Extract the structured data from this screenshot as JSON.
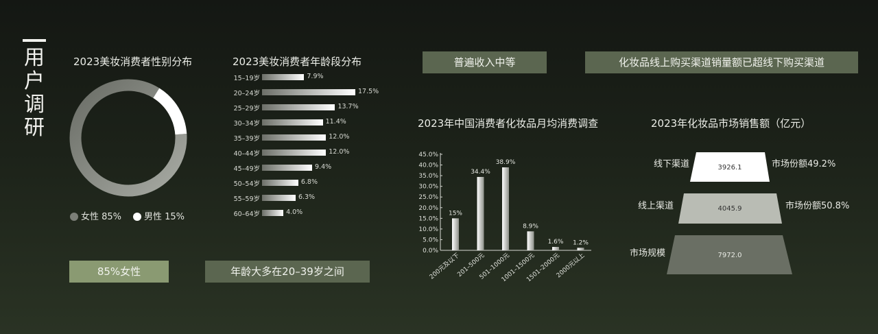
{
  "section_title": [
    "用",
    "户",
    "调",
    "研"
  ],
  "gender": {
    "title": "2023美妆消费者性别分布",
    "chart_data": {
      "type": "pie",
      "categories": [
        "女性",
        "男性"
      ],
      "values": [
        85,
        15
      ]
    },
    "legend": [
      {
        "label": "女性 85%",
        "color": "#7c7f78"
      },
      {
        "label": "男性 15%",
        "color": "#ffffff"
      }
    ],
    "tag": "85%女性"
  },
  "age": {
    "title": "2023美妆消费者年龄段分布",
    "chart_data": {
      "type": "bar",
      "orientation": "horizontal",
      "categories": [
        "15–19岁",
        "20–24岁",
        "25–29岁",
        "30–34岁",
        "35–39岁",
        "40–44岁",
        "45–49岁",
        "50–54岁",
        "55–59岁",
        "60–64岁"
      ],
      "values": [
        7.9,
        17.5,
        13.7,
        11.4,
        12.0,
        12.0,
        9.4,
        6.8,
        6.3,
        4.0
      ],
      "value_labels": [
        "7.9%",
        "17.5%",
        "13.7%",
        "11.4%",
        "12.0%",
        "12.0%",
        "9.4%",
        "6.8%",
        "6.3%",
        "4.0%"
      ]
    },
    "tag": "年龄大多在20–39岁之间"
  },
  "tags_top": {
    "income": "普遍收入中等",
    "channel": "化妆品线上购买渠道销量额已超线下购买渠道"
  },
  "monthly": {
    "title": "2023年中国消费者化妆品月均消费调查",
    "chart_data": {
      "type": "bar",
      "categories": [
        "200元及以下",
        "201–500元",
        "501–1000元",
        "1001–1500元",
        "1501–2000元",
        "2000元以上"
      ],
      "values": [
        15,
        34.4,
        38.9,
        8.9,
        1.6,
        1.2
      ],
      "value_labels": [
        "15%",
        "34.4%",
        "38.9%",
        "8.9%",
        "1.6%",
        "1.2%"
      ],
      "ylim": [
        0,
        45
      ],
      "yticks": [
        "0.0%",
        "5.0%",
        "10.0%",
        "15.0%",
        "20.0%",
        "25.0%",
        "30.0%",
        "35.0%",
        "40.0%",
        "45.0%"
      ]
    }
  },
  "market": {
    "title": "2023年化妆品市场销售额（亿元）",
    "chart_data": {
      "type": "funnel",
      "categories": [
        "线下渠道",
        "线上渠道",
        "市场规模"
      ],
      "values": [
        3926.1,
        4045.9,
        7972.0
      ],
      "value_labels": [
        "3926.1",
        "4045.9",
        "7972.0"
      ],
      "share_labels": [
        "市场份额49.2%",
        "市场份额50.8%",
        ""
      ],
      "colors": [
        "#ffffff",
        "#b9bcb4",
        "#6a6f64"
      ]
    }
  }
}
